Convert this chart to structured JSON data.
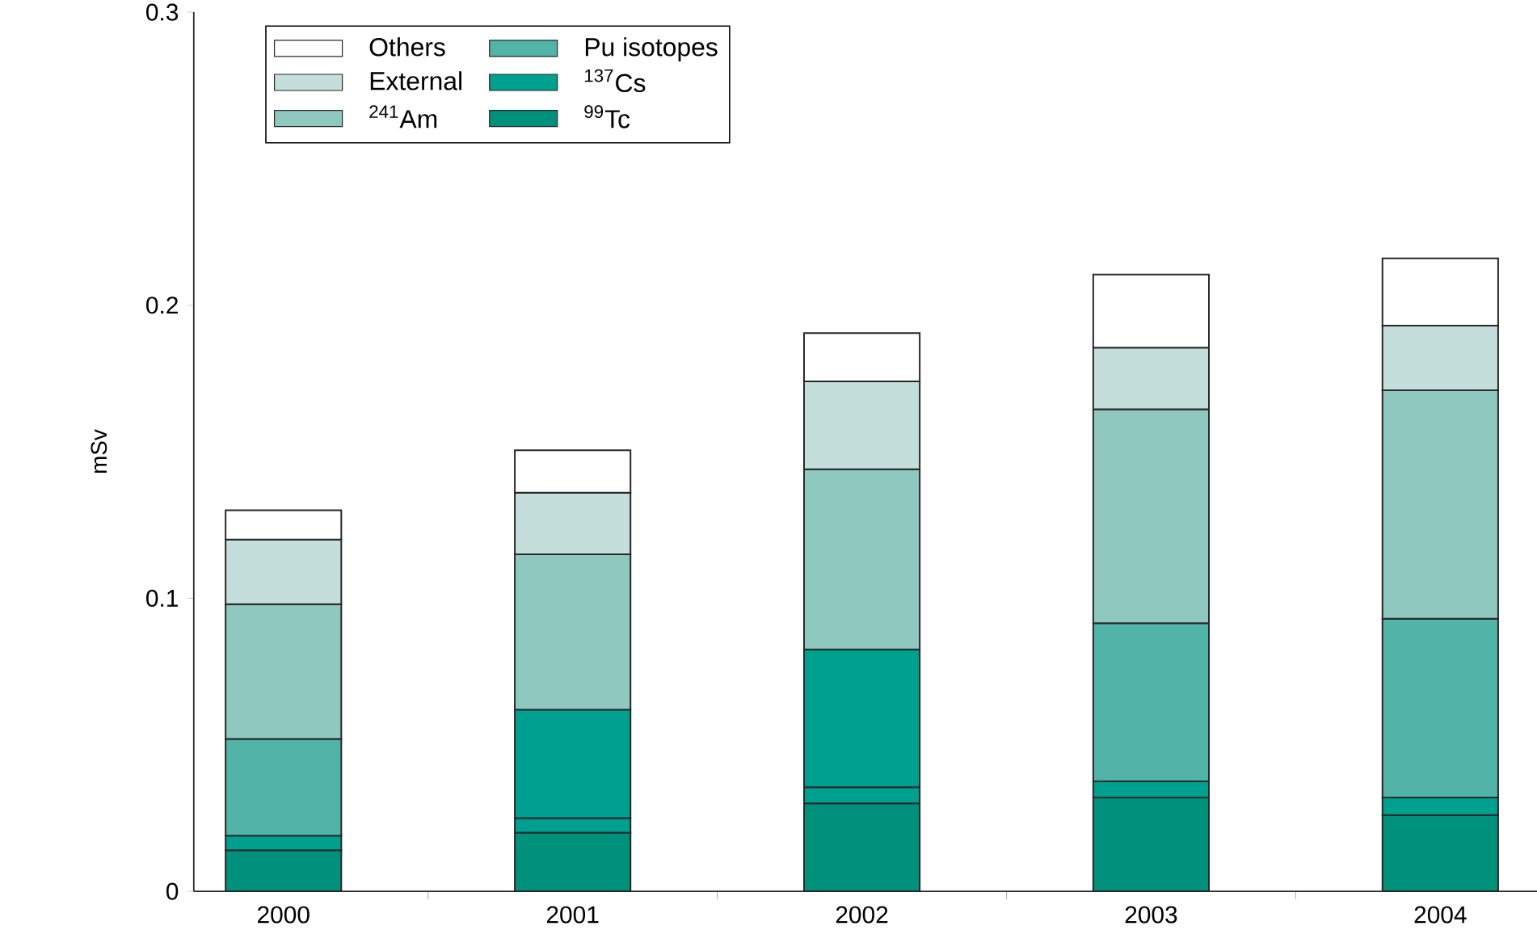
{
  "chart_data": {
    "type": "bar",
    "stacked": true,
    "ylabel": "mSv",
    "categories": [
      "2000",
      "2001",
      "2002",
      "2003",
      "2004"
    ],
    "series": [
      {
        "name": "$^{99}$Tc",
        "color": "#00917c",
        "values": [
          0.014,
          0.02,
          0.03,
          0.032,
          0.026
        ]
      },
      {
        "name": "$^{137}$Cs",
        "color": "#00a090",
        "values": [
          0.005,
          0.005,
          0.0055,
          0.0055,
          0.006
        ]
      },
      {
        "name": "Pu isotopes",
        "color": "#52b3a8",
        "colors": [
          "#52b3a8",
          "#00a090",
          "#00a090",
          "#52b3a8",
          "#52b3a8"
        ],
        "values": [
          0.033,
          0.037,
          0.047,
          0.054,
          0.061
        ]
      },
      {
        "name": "$^{241}$Am",
        "color": "#8ec8bf",
        "values": [
          0.046,
          0.053,
          0.0615,
          0.073,
          0.078
        ]
      },
      {
        "name": "External",
        "color": "#c4dfdb",
        "values": [
          0.022,
          0.021,
          0.03,
          0.021,
          0.022
        ]
      },
      {
        "name": "Others",
        "color": "#ffffff",
        "values": [
          0.01,
          0.0145,
          0.0165,
          0.025,
          0.023
        ]
      }
    ],
    "ylim": [
      0,
      0.3
    ],
    "yticks": [
      0,
      0.1,
      0.2,
      0.3
    ],
    "legend": "top left",
    "grid": false
  }
}
